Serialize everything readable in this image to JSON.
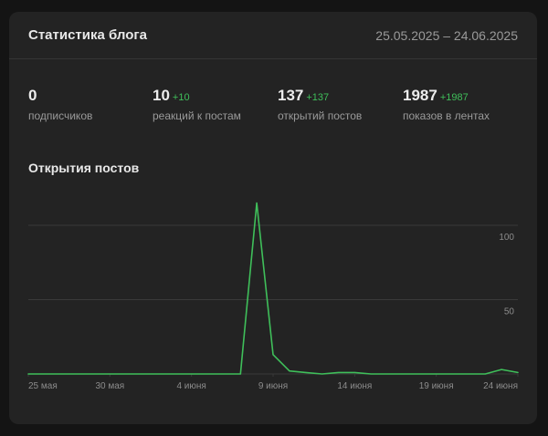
{
  "header": {
    "title": "Статистика блога",
    "date_range": "25.05.2025 – 24.06.2025"
  },
  "stats": [
    {
      "value": "0",
      "delta": "",
      "label": "подписчиков"
    },
    {
      "value": "10",
      "delta": "+10",
      "label": "реакций к постам"
    },
    {
      "value": "137",
      "delta": "+137",
      "label": "открытий постов"
    },
    {
      "value": "1987",
      "delta": "+1987",
      "label": "показов в лентах"
    }
  ],
  "chart_title": "Открытия постов",
  "colors": {
    "line": "#3fbf5a",
    "grid": "#3a3a3a",
    "card": "#232323"
  },
  "chart_data": {
    "type": "line",
    "x": [
      "25.05",
      "26.05",
      "27.05",
      "28.05",
      "29.05",
      "30.05",
      "31.05",
      "01.06",
      "02.06",
      "03.06",
      "04.06",
      "05.06",
      "06.06",
      "07.06",
      "08.06",
      "09.06",
      "10.06",
      "11.06",
      "12.06",
      "13.06",
      "14.06",
      "15.06",
      "16.06",
      "17.06",
      "18.06",
      "19.06",
      "20.06",
      "21.06",
      "22.06",
      "23.06",
      "24.06"
    ],
    "series": [
      {
        "values": [
          0,
          0,
          0,
          0,
          0,
          0,
          0,
          0,
          0,
          0,
          0,
          0,
          0,
          0,
          115,
          13,
          2,
          1,
          0,
          1,
          1,
          0,
          0,
          0,
          0,
          0,
          0,
          0,
          0,
          3,
          1
        ]
      }
    ],
    "x_tick_labels": [
      {
        "x": "25.05",
        "label": "25 мая"
      },
      {
        "x": "30.05",
        "label": "30 мая"
      },
      {
        "x": "04.06",
        "label": "4 июня"
      },
      {
        "x": "09.06",
        "label": "9 июня"
      },
      {
        "x": "14.06",
        "label": "14 июня"
      },
      {
        "x": "19.06",
        "label": "19 июня"
      },
      {
        "x": "24.06",
        "label": "24 июня"
      }
    ],
    "y_ticks": [
      50,
      100
    ],
    "ylim": [
      0,
      100
    ],
    "grid": true,
    "y_axis_side": "right"
  }
}
